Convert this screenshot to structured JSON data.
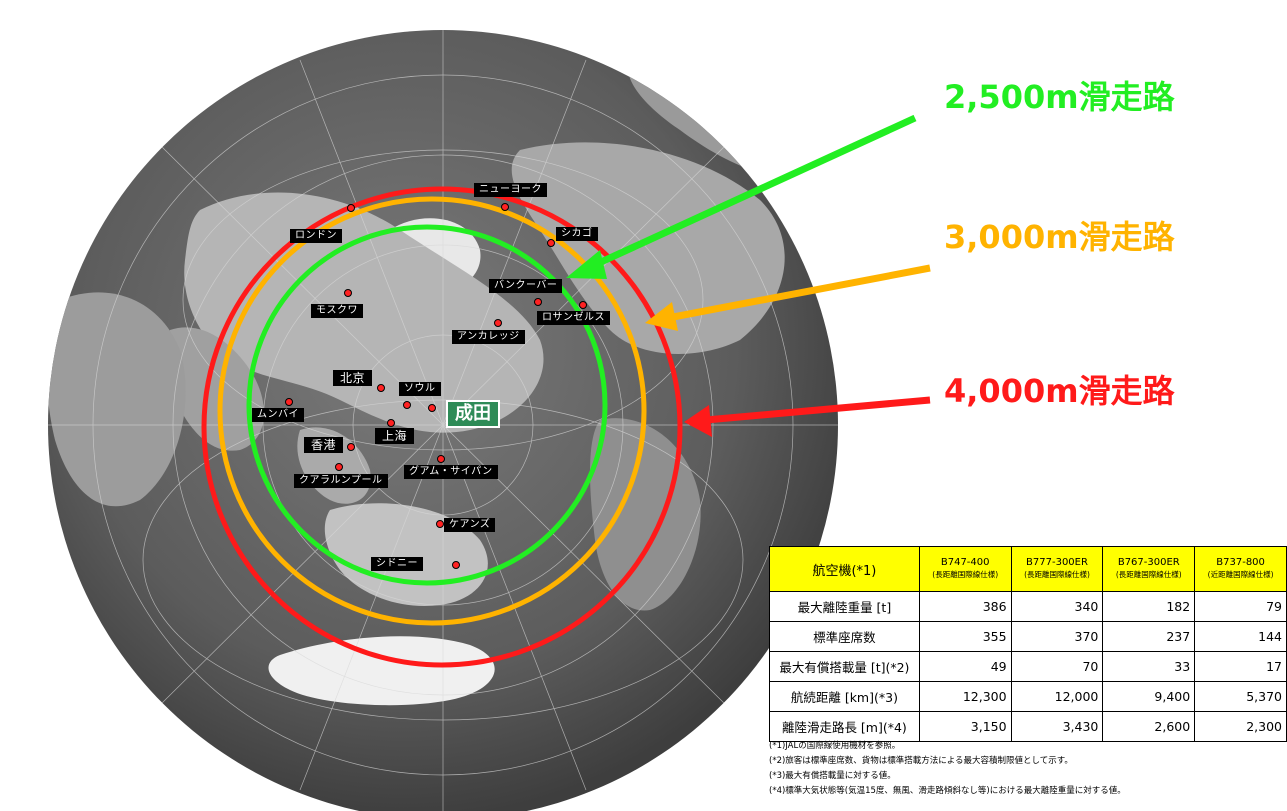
{
  "airport": "成田",
  "cities": [
    {
      "label": "ニューヨーク"
    },
    {
      "label": "シカゴ"
    },
    {
      "label": "ロンドン"
    },
    {
      "label": "バンクーバー"
    },
    {
      "label": "ロサンゼルス"
    },
    {
      "label": "モスクワ"
    },
    {
      "label": "アンカレッジ"
    },
    {
      "label": "北京"
    },
    {
      "label": "ソウル"
    },
    {
      "label": "ムンバイ"
    },
    {
      "label": "上海"
    },
    {
      "label": "香港"
    },
    {
      "label": "グアム・サイパン"
    },
    {
      "label": "クアラルンプール"
    },
    {
      "label": "ケアンズ"
    },
    {
      "label": "シドニー"
    }
  ],
  "runways": [
    {
      "label": "2,500m滑走路",
      "color": "#22ee22"
    },
    {
      "label": "3,000m滑走路",
      "color": "#ffb300"
    },
    {
      "label": "4,000m滑走路",
      "color": "#ff1a1a"
    }
  ],
  "table": {
    "corner": "航空機(*1)",
    "aircraft": [
      {
        "name": "B747-400",
        "sub": "(長距離国際線仕様)"
      },
      {
        "name": "B777-300ER",
        "sub": "(長距離国際線仕様)"
      },
      {
        "name": "B767-300ER",
        "sub": "(長距離国際線仕様)"
      },
      {
        "name": "B737-800",
        "sub": "(近距離国際線仕様)"
      }
    ],
    "rows": [
      {
        "label": "最大離陸重量 [t]",
        "values": [
          "386",
          "340",
          "182",
          "79"
        ]
      },
      {
        "label": "標準座席数",
        "values": [
          "355",
          "370",
          "237",
          "144"
        ]
      },
      {
        "label": "最大有償搭載量 [t](*2)",
        "values": [
          "49",
          "70",
          "33",
          "17"
        ]
      },
      {
        "label": "航続距離 [km](*3)",
        "values": [
          "12,300",
          "12,000",
          "9,400",
          "5,370"
        ]
      },
      {
        "label": "離陸滑走路長 [m](*4)",
        "values": [
          "3,150",
          "3,430",
          "2,600",
          "2,300"
        ]
      }
    ]
  },
  "notes": [
    "(*1)JALの国際線使用機材を参照。",
    "(*2)旅客は標準座席数、貨物は標準搭載方法による最大容積制限値として示す。",
    "(*3)最大有償搭載量に対する値。",
    "(*4)標準大気状態等(気温15度、無風、滑走路傾斜なし等)における最大離陸重量に対する値。"
  ]
}
